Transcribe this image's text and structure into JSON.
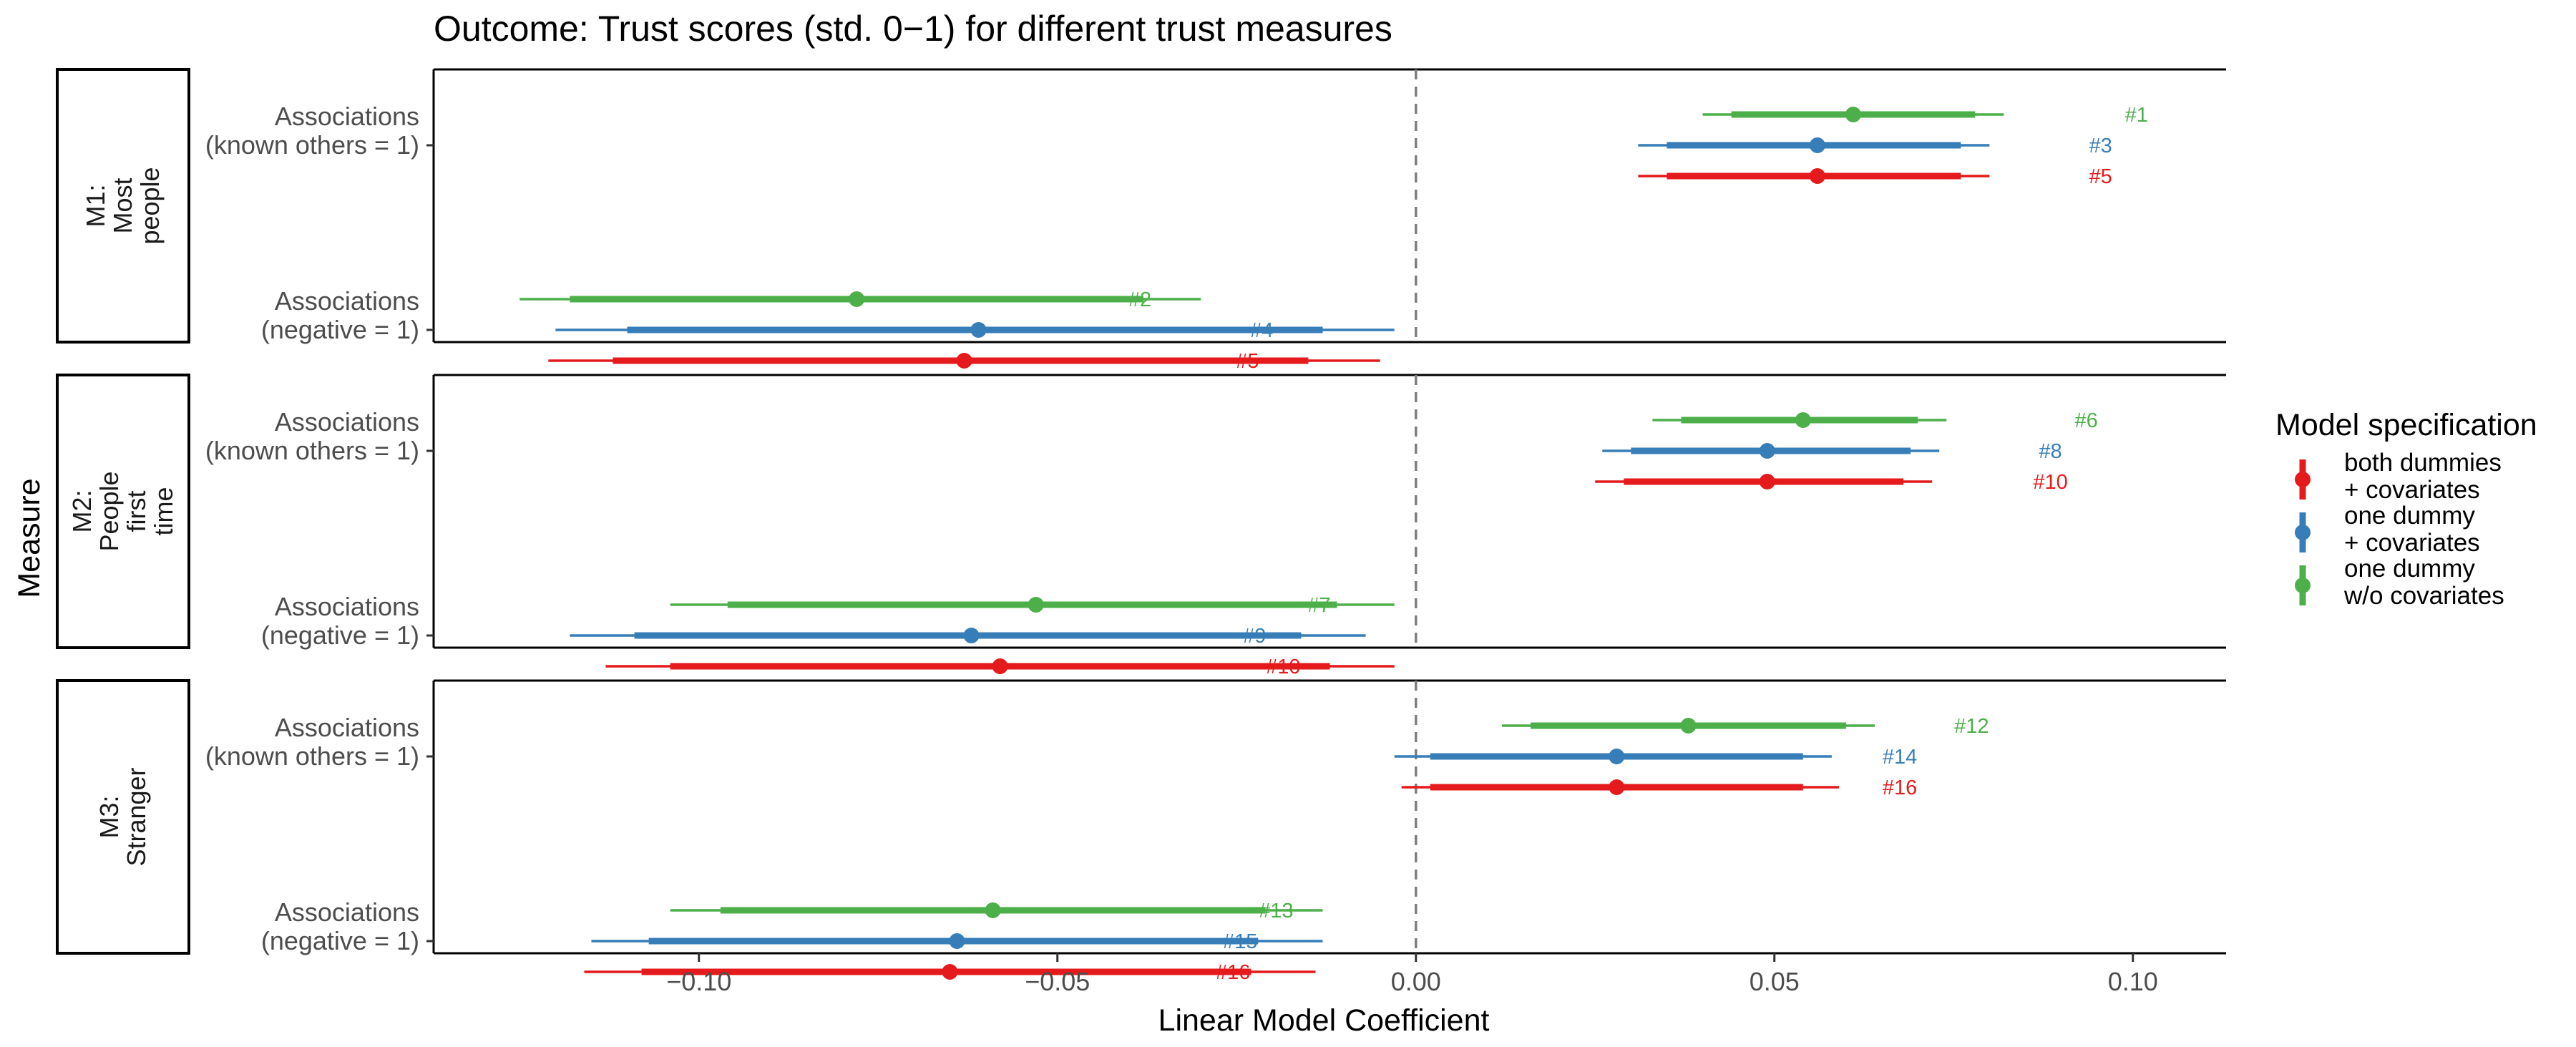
{
  "chart_data": {
    "type": "coefficient-plot",
    "title": "Outcome: Trust scores (std. 0−1) for different trust measures",
    "xlabel": "Linear Model Coefficient",
    "ylabel": "Measure",
    "xlim": [
      -0.137,
      0.113
    ],
    "x_ticks": [
      -0.1,
      -0.05,
      0.0,
      0.05,
      0.1
    ],
    "x_tick_labels": [
      "−0.10",
      "−0.05",
      "0.00",
      "0.05",
      "0.10"
    ],
    "reference_line": 0,
    "grid": false,
    "legend": {
      "title": "Model specification",
      "placement": "right",
      "entries": [
        {
          "key": "both",
          "label": [
            "both dummies",
            "+ covariates"
          ],
          "color": "#E41A1C"
        },
        {
          "key": "one",
          "label": [
            "one dummy",
            "+ covariates"
          ],
          "color": "#377EB8"
        },
        {
          "key": "nocov",
          "label": [
            "one dummy",
            "w/o covariates"
          ],
          "color": "#4DAF4A"
        }
      ]
    },
    "series_colors": {
      "both": "#E41A1C",
      "one": "#377EB8",
      "nocov": "#4DAF4A"
    },
    "panels": [
      {
        "strip": [
          "M1:",
          "Most",
          "people"
        ],
        "rows": [
          {
            "label": [
              "Associations",
              "(known others = 1)"
            ],
            "estimates": [
              {
                "spec": "nocov",
                "id": "#1",
                "est": 0.061,
                "ci90": [
                  0.044,
                  0.078
                ],
                "ci95": [
                  0.04,
                  0.082
                ]
              },
              {
                "spec": "one",
                "id": "#3",
                "est": 0.056,
                "ci90": [
                  0.035,
                  0.076
                ],
                "ci95": [
                  0.031,
                  0.08
                ]
              },
              {
                "spec": "both",
                "id": "#5",
                "est": 0.056,
                "ci90": [
                  0.035,
                  0.076
                ],
                "ci95": [
                  0.031,
                  0.08
                ]
              }
            ]
          },
          {
            "label": [
              "Associations",
              "(negative = 1)"
            ],
            "estimates": [
              {
                "spec": "nocov",
                "id": "#2",
                "est": -0.078,
                "ci90": [
                  -0.118,
                  -0.038
                ],
                "ci95": [
                  -0.125,
                  -0.03
                ]
              },
              {
                "spec": "one",
                "id": "#4",
                "est": -0.061,
                "ci90": [
                  -0.11,
                  -0.013
                ],
                "ci95": [
                  -0.12,
                  -0.003
                ]
              },
              {
                "spec": "both",
                "id": "#5",
                "est": -0.063,
                "ci90": [
                  -0.112,
                  -0.015
                ],
                "ci95": [
                  -0.121,
                  -0.005
                ]
              }
            ]
          }
        ]
      },
      {
        "strip": [
          "M2:",
          "People",
          "first",
          "time"
        ],
        "rows": [
          {
            "label": [
              "Associations",
              "(known others = 1)"
            ],
            "estimates": [
              {
                "spec": "nocov",
                "id": "#6",
                "est": 0.054,
                "ci90": [
                  0.037,
                  0.07
                ],
                "ci95": [
                  0.033,
                  0.074
                ]
              },
              {
                "spec": "one",
                "id": "#8",
                "est": 0.049,
                "ci90": [
                  0.03,
                  0.069
                ],
                "ci95": [
                  0.026,
                  0.073
                ]
              },
              {
                "spec": "both",
                "id": "#10",
                "est": 0.049,
                "ci90": [
                  0.029,
                  0.068
                ],
                "ci95": [
                  0.025,
                  0.072
                ]
              }
            ]
          },
          {
            "label": [
              "Associations",
              "(negative = 1)"
            ],
            "estimates": [
              {
                "spec": "nocov",
                "id": "#7",
                "est": -0.053,
                "ci90": [
                  -0.096,
                  -0.011
                ],
                "ci95": [
                  -0.104,
                  -0.003
                ]
              },
              {
                "spec": "one",
                "id": "#9",
                "est": -0.062,
                "ci90": [
                  -0.109,
                  -0.016
                ],
                "ci95": [
                  -0.118,
                  -0.007
                ]
              },
              {
                "spec": "both",
                "id": "#10",
                "est": -0.058,
                "ci90": [
                  -0.104,
                  -0.012
                ],
                "ci95": [
                  -0.113,
                  -0.003
                ]
              }
            ]
          }
        ]
      },
      {
        "strip": [
          "M3:",
          "Stranger"
        ],
        "rows": [
          {
            "label": [
              "Associations",
              "(known others = 1)"
            ],
            "estimates": [
              {
                "spec": "nocov",
                "id": "#12",
                "est": 0.038,
                "ci90": [
                  0.016,
                  0.06
                ],
                "ci95": [
                  0.012,
                  0.064
                ]
              },
              {
                "spec": "one",
                "id": "#14",
                "est": 0.028,
                "ci90": [
                  0.002,
                  0.054
                ],
                "ci95": [
                  -0.003,
                  0.058
                ]
              },
              {
                "spec": "both",
                "id": "#16",
                "est": 0.028,
                "ci90": [
                  0.002,
                  0.054
                ],
                "ci95": [
                  -0.002,
                  0.059
                ]
              }
            ]
          },
          {
            "label": [
              "Associations",
              "(negative = 1)"
            ],
            "estimates": [
              {
                "spec": "nocov",
                "id": "#13",
                "est": -0.059,
                "ci90": [
                  -0.097,
                  -0.021
                ],
                "ci95": [
                  -0.104,
                  -0.013
                ]
              },
              {
                "spec": "one",
                "id": "#15",
                "est": -0.064,
                "ci90": [
                  -0.107,
                  -0.022
                ],
                "ci95": [
                  -0.115,
                  -0.013
                ]
              },
              {
                "spec": "both",
                "id": "#16",
                "est": -0.065,
                "ci90": [
                  -0.108,
                  -0.023
                ],
                "ci95": [
                  -0.116,
                  -0.014
                ]
              }
            ]
          }
        ]
      }
    ]
  }
}
